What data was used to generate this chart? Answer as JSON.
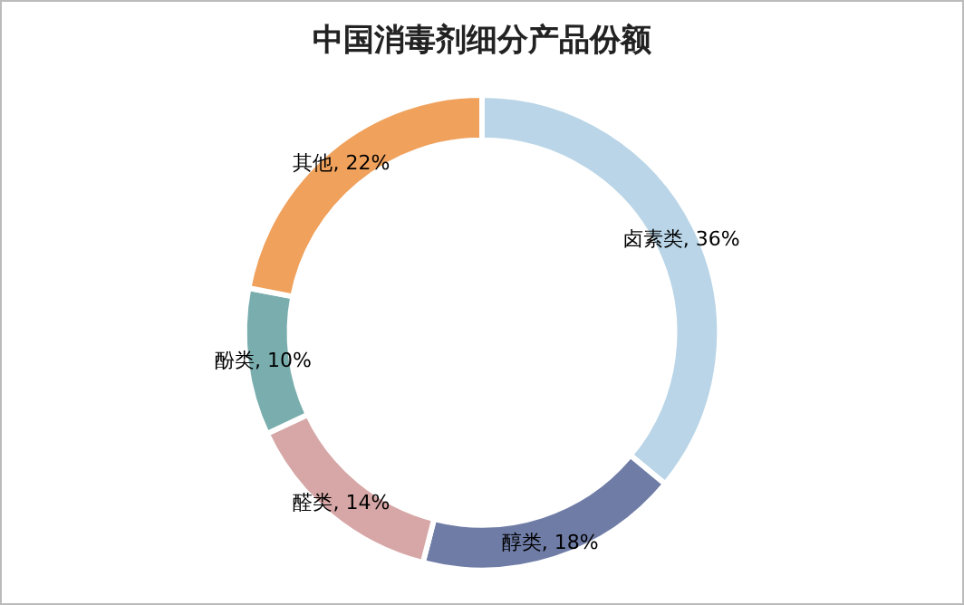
{
  "chart_data": {
    "type": "donut",
    "title": "中国消毒剂细分产品份额",
    "categories": [
      "卤素类",
      "醇类",
      "醛类",
      "酚类",
      "其他"
    ],
    "values": [
      36,
      18,
      14,
      10,
      22
    ],
    "colors": [
      "#b9d5e7",
      "#6f7ca6",
      "#d6a7a6",
      "#7aaeae",
      "#f0a15c"
    ],
    "value_labels": [
      ", 36%",
      ", 18%",
      ", 14%",
      ", 10%",
      ", 22%"
    ],
    "legend": false
  }
}
